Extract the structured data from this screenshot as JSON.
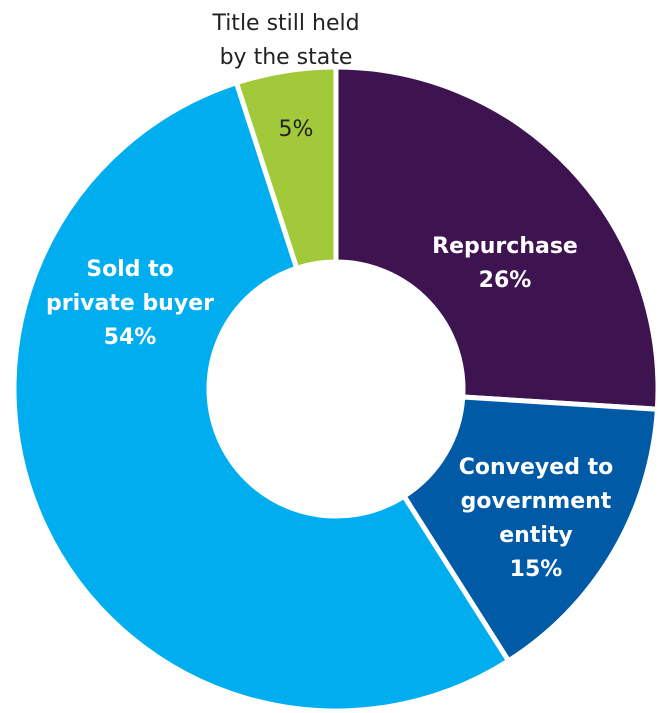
{
  "chart_data": {
    "type": "pie",
    "donut": true,
    "slices": [
      {
        "lines": [
          "Repurchase",
          "26%"
        ],
        "value": 26,
        "color": "#3e1450",
        "label_color": "#ffffff",
        "label_pos": "inside"
      },
      {
        "lines": [
          "Conveyed to",
          "government",
          "entity",
          "15%"
        ],
        "value": 15,
        "color": "#005aa6",
        "label_color": "#ffffff",
        "label_pos": "inside"
      },
      {
        "lines": [
          "Sold to",
          "private buyer",
          "54%"
        ],
        "value": 54,
        "color": "#00aeef",
        "label_color": "#ffffff",
        "label_pos": "inside"
      },
      {
        "lines": [
          "5%"
        ],
        "value": 5,
        "color": "#a2c93a",
        "label_color": "#222222",
        "label_pos": "inside"
      }
    ],
    "outside_labels": [
      {
        "slice": 3,
        "lines": [
          "Title still held",
          "by the state"
        ]
      }
    ],
    "start": "12 o'clock",
    "direction": "clockwise"
  }
}
